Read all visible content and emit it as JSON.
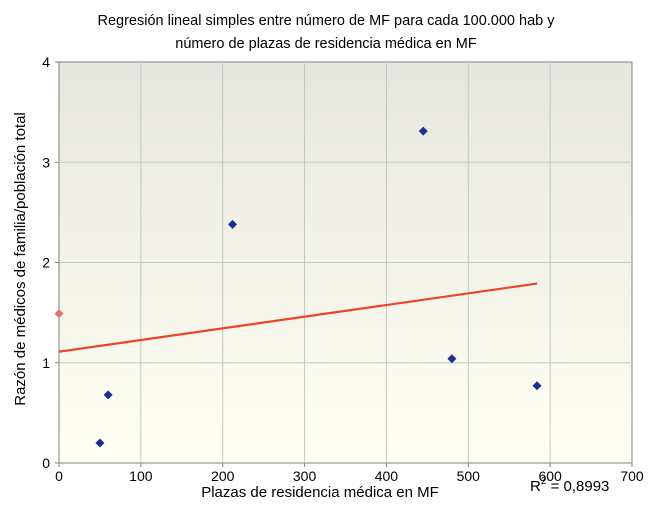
{
  "chart_data": {
    "type": "scatter",
    "title_lines": [
      "Regresión lineal simples entre número de MF para cada 100.000 hab y",
      "número de plazas de residencia médica en MF"
    ],
    "xlabel": "Plazas de residencia médica en MF",
    "ylabel": "Razón de médicos de familia/población total",
    "xlim": [
      0,
      700
    ],
    "ylim": [
      0,
      4
    ],
    "x_ticks": [
      "0",
      "100",
      "200",
      "300",
      "400",
      "500",
      "600",
      "700"
    ],
    "y_ticks": [
      "0",
      "1",
      "2",
      "3",
      "4"
    ],
    "grid": true,
    "series": [
      {
        "marker": "diamond",
        "color": "#1a2f8f",
        "points": [
          {
            "x": 50,
            "y": 0.2
          },
          {
            "x": 60,
            "y": 0.68
          },
          {
            "x": 212,
            "y": 2.38
          },
          {
            "x": 445,
            "y": 3.31
          },
          {
            "x": 480,
            "y": 1.04
          },
          {
            "x": 584,
            "y": 0.77
          }
        ]
      },
      {
        "marker": "diamond",
        "color": "#e8736a",
        "points": [
          {
            "x": 0,
            "y": 1.49
          }
        ]
      }
    ],
    "trendline": {
      "color": "#ee4422",
      "x": [
        0,
        584
      ],
      "y": [
        1.11,
        1.79
      ]
    },
    "r2_prefix": "R",
    "r2_exp": "2",
    "r2_value": " = 0,8993"
  }
}
